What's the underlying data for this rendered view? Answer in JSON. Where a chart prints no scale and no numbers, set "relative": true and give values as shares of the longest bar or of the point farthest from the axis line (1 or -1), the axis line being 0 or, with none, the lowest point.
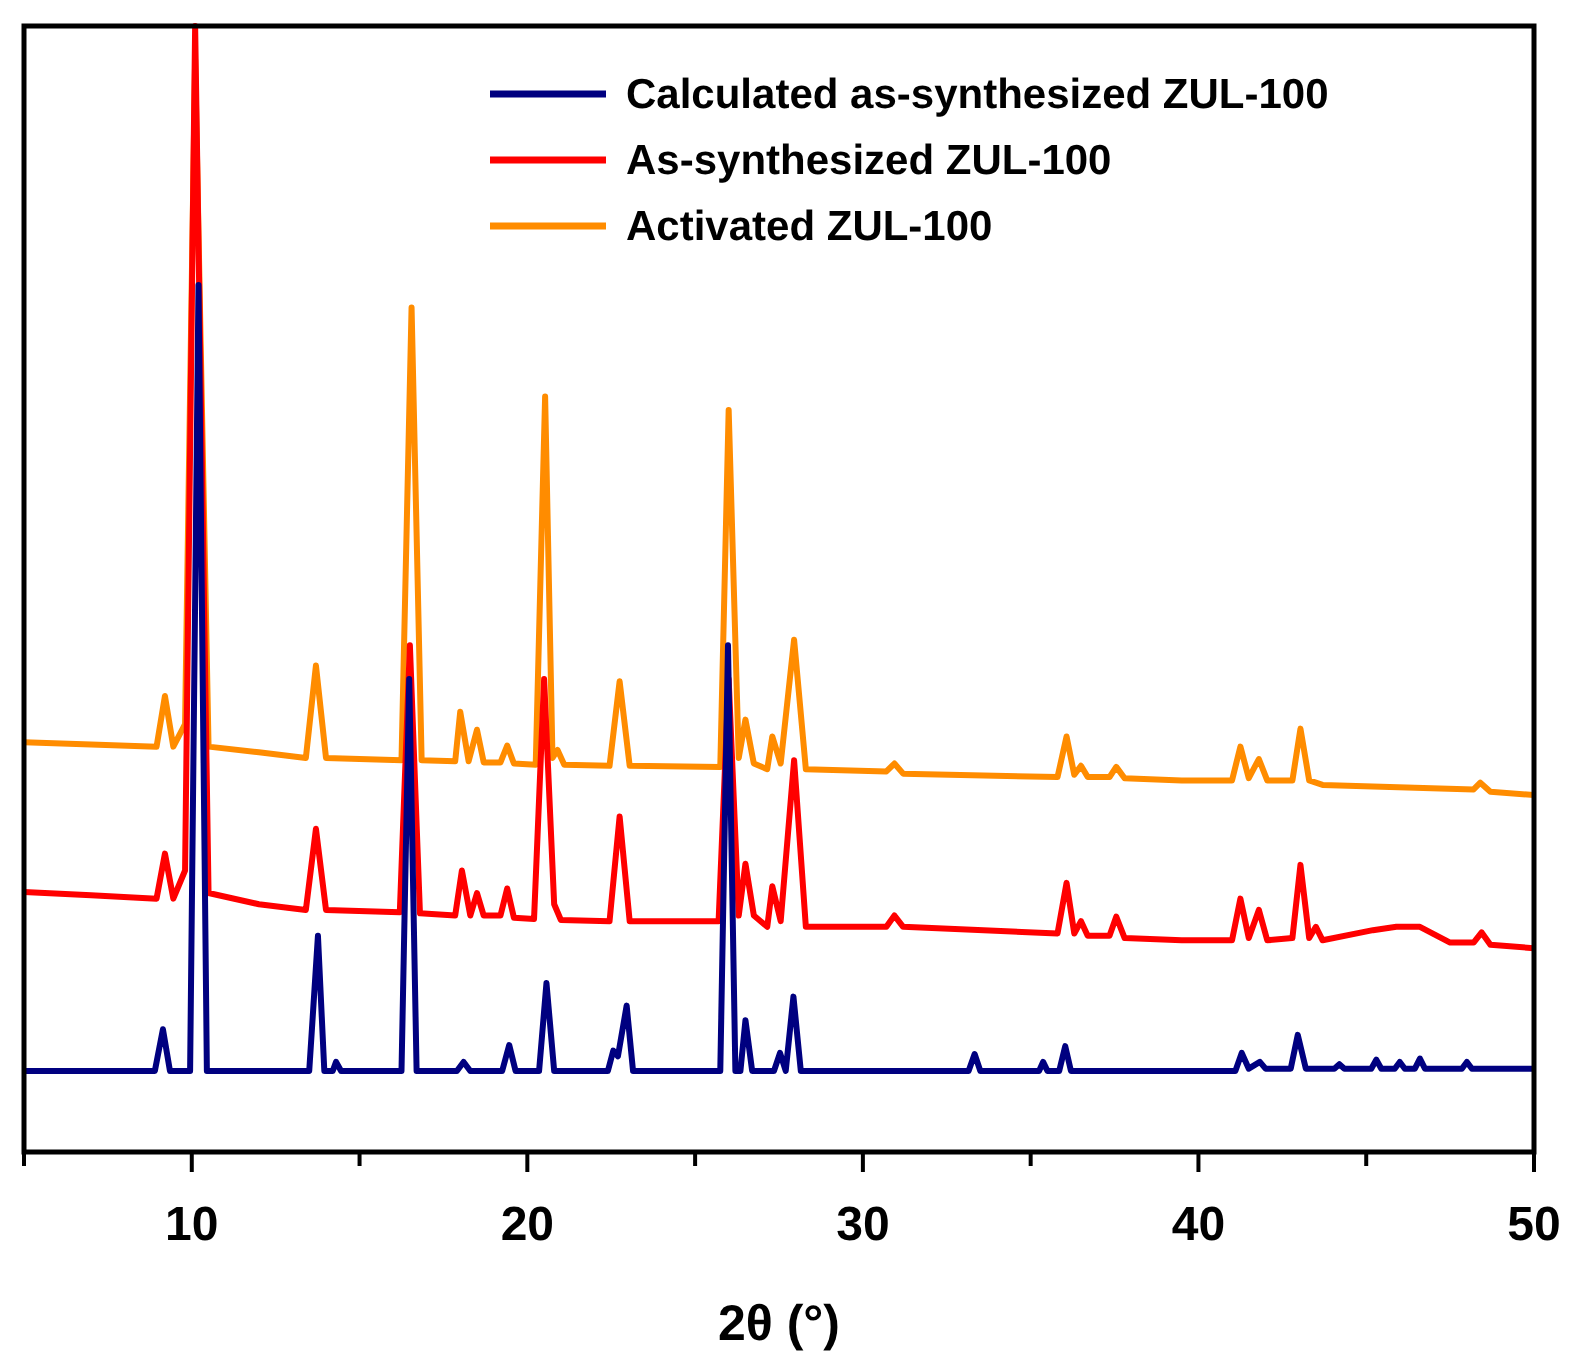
{
  "chart_data": {
    "type": "line",
    "relative": true,
    "xlabel": "2θ (°)",
    "xlim": [
      5,
      50
    ],
    "xticks": [
      {
        "value": 5,
        "label": null
      },
      10,
      {
        "value": 15,
        "label": null
      },
      20,
      {
        "value": 25,
        "label": null
      },
      30,
      {
        "value": 35,
        "label": null
      },
      40,
      {
        "value": 45,
        "label": null
      },
      50
    ],
    "legend": "top right",
    "grid": false,
    "marker": "none",
    "line_style": "solid",
    "series": [
      {
        "name": "Calculated as-synthesized ZUL-100",
        "color": "#000080",
        "x": [
          5,
          8.9,
          9.14,
          9.35,
          9.95,
          10.2,
          10.45,
          13.5,
          13.76,
          13.95,
          14.2,
          14.3,
          14.45,
          16.25,
          16.48,
          16.7,
          17.9,
          18.1,
          18.3,
          19.25,
          19.46,
          19.65,
          20.35,
          20.57,
          20.8,
          22.4,
          22.56,
          22.7,
          22.96,
          23.15,
          25.75,
          25.98,
          26.2,
          26.35,
          26.5,
          26.7,
          27.35,
          27.53,
          27.7,
          27.93,
          28.15,
          33.15,
          33.33,
          33.5,
          35.25,
          35.37,
          35.5,
          35.85,
          36.03,
          36.2,
          41.1,
          41.29,
          41.5,
          41.83,
          42.0,
          42.75,
          42.96,
          43.2,
          44.05,
          44.2,
          44.35,
          45.15,
          45.3,
          45.45,
          45.85,
          46.0,
          46.15,
          46.45,
          46.6,
          46.75,
          47.85,
          48.0,
          48.15,
          50
        ],
        "values": [
          0.072,
          0.072,
          0.109,
          0.072,
          0.072,
          0.77,
          0.072,
          0.072,
          0.192,
          0.072,
          0.072,
          0.08,
          0.072,
          0.072,
          0.42,
          0.072,
          0.072,
          0.08,
          0.072,
          0.072,
          0.095,
          0.072,
          0.072,
          0.15,
          0.072,
          0.072,
          0.09,
          0.085,
          0.13,
          0.072,
          0.072,
          0.45,
          0.072,
          0.072,
          0.117,
          0.072,
          0.072,
          0.088,
          0.072,
          0.138,
          0.072,
          0.072,
          0.087,
          0.072,
          0.072,
          0.08,
          0.072,
          0.072,
          0.094,
          0.072,
          0.072,
          0.088,
          0.074,
          0.08,
          0.074,
          0.074,
          0.104,
          0.074,
          0.074,
          0.078,
          0.074,
          0.074,
          0.082,
          0.074,
          0.074,
          0.08,
          0.074,
          0.074,
          0.083,
          0.074,
          0.074,
          0.08,
          0.074,
          0.074
        ]
      },
      {
        "name": "As-synthesized ZUL-100",
        "color": "#ff0000",
        "x": [
          5,
          7,
          8.95,
          9.2,
          9.45,
          9.8,
          10.1,
          10.5,
          12,
          13.4,
          13.7,
          14.0,
          16.2,
          16.5,
          16.8,
          17.85,
          18.05,
          18.3,
          18.5,
          18.7,
          19.2,
          19.4,
          19.6,
          20.2,
          20.5,
          20.8,
          21,
          22.45,
          22.75,
          23.05,
          25.7,
          26.0,
          26.3,
          26.5,
          26.75,
          27.15,
          27.3,
          27.55,
          27.95,
          28.3,
          30.7,
          30.94,
          31.2,
          35.8,
          36.07,
          36.3,
          36.5,
          36.7,
          37.35,
          37.55,
          37.8,
          39.5,
          41.0,
          41.25,
          41.5,
          41.8,
          42.05,
          42.8,
          43.04,
          43.3,
          43.5,
          43.7,
          45.2,
          45.9,
          46.6,
          47.5,
          48.2,
          48.44,
          48.7,
          50
        ],
        "values": [
          0.231,
          0.228,
          0.225,
          0.265,
          0.225,
          0.25,
          1.0,
          0.23,
          0.22,
          0.215,
          0.287,
          0.215,
          0.213,
          0.45,
          0.212,
          0.21,
          0.25,
          0.21,
          0.23,
          0.21,
          0.21,
          0.234,
          0.208,
          0.207,
          0.42,
          0.22,
          0.206,
          0.205,
          0.298,
          0.205,
          0.205,
          0.42,
          0.21,
          0.256,
          0.21,
          0.2,
          0.236,
          0.205,
          0.348,
          0.2,
          0.2,
          0.21,
          0.2,
          0.194,
          0.239,
          0.194,
          0.205,
          0.192,
          0.192,
          0.209,
          0.19,
          0.188,
          0.188,
          0.225,
          0.19,
          0.215,
          0.188,
          0.19,
          0.255,
          0.19,
          0.2,
          0.188,
          0.197,
          0.2,
          0.2,
          0.186,
          0.186,
          0.195,
          0.184,
          0.181
        ]
      },
      {
        "name": "Activated ZUL-100",
        "color": "#ff8c00",
        "x": [
          5,
          7,
          8.95,
          9.2,
          9.45,
          9.8,
          10.1,
          10.5,
          12,
          13.4,
          13.7,
          14.0,
          16.25,
          16.55,
          16.85,
          17.85,
          18.0,
          18.25,
          18.5,
          18.7,
          19.2,
          19.4,
          19.6,
          20.25,
          20.53,
          20.75,
          20.9,
          21.1,
          22.45,
          22.75,
          23.05,
          25.75,
          26.0,
          26.3,
          26.5,
          26.75,
          27.15,
          27.3,
          27.55,
          27.95,
          28.3,
          30.7,
          30.94,
          31.2,
          35.8,
          36.07,
          36.3,
          36.5,
          36.7,
          37.35,
          37.55,
          37.8,
          39.5,
          41.0,
          41.25,
          41.5,
          41.8,
          42.05,
          42.8,
          43.04,
          43.3,
          43.5,
          43.7,
          48.2,
          48.4,
          48.7,
          50
        ],
        "values": [
          0.364,
          0.362,
          0.36,
          0.405,
          0.36,
          0.38,
          0.97,
          0.36,
          0.355,
          0.35,
          0.432,
          0.35,
          0.348,
          0.75,
          0.348,
          0.347,
          0.391,
          0.347,
          0.375,
          0.346,
          0.346,
          0.361,
          0.345,
          0.344,
          0.671,
          0.35,
          0.357,
          0.344,
          0.343,
          0.418,
          0.343,
          0.342,
          0.659,
          0.35,
          0.384,
          0.345,
          0.34,
          0.369,
          0.345,
          0.455,
          0.34,
          0.338,
          0.345,
          0.336,
          0.333,
          0.369,
          0.335,
          0.343,
          0.333,
          0.333,
          0.342,
          0.332,
          0.33,
          0.33,
          0.36,
          0.332,
          0.349,
          0.33,
          0.33,
          0.376,
          0.33,
          0.328,
          0.326,
          0.322,
          0.328,
          0.32,
          0.317
        ]
      }
    ]
  }
}
